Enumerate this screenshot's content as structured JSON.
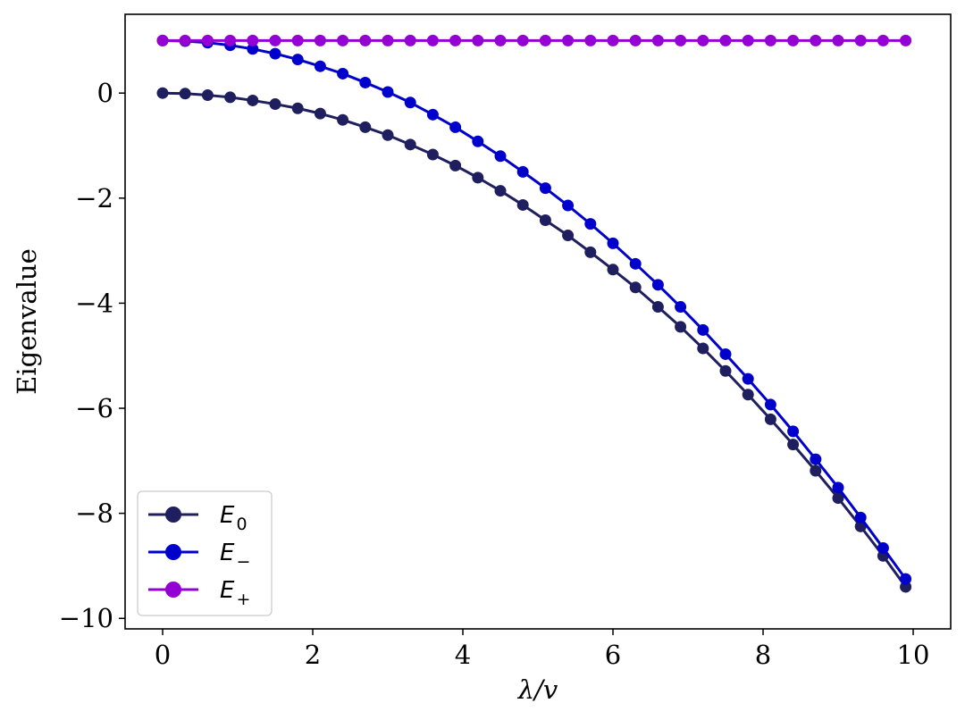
{
  "chart_data": {
    "type": "line",
    "xlabel": "λ/v",
    "ylabel": "Eigenvalue",
    "xlim": [
      -0.5,
      10.5
    ],
    "ylim": [
      -10.2,
      1.5
    ],
    "xticks": [
      0,
      2,
      4,
      6,
      8,
      10
    ],
    "yticks": [
      0,
      -2,
      -4,
      -6,
      -8,
      -10
    ],
    "xtick_labels": [
      "0",
      "2",
      "4",
      "6",
      "8",
      "10"
    ],
    "ytick_labels": [
      "0",
      "−2",
      "−4",
      "−6",
      "−8",
      "−10"
    ],
    "grid": false,
    "legend_position": "lower-left",
    "x": [
      0,
      0.3,
      0.6,
      0.9,
      1.2,
      1.5,
      1.8,
      2.1,
      2.4,
      2.7,
      3.0,
      3.3,
      3.6,
      3.9,
      4.2,
      4.5,
      4.8,
      5.1,
      5.4,
      5.7,
      6.0,
      6.3,
      6.6,
      6.9,
      7.2,
      7.5,
      7.8,
      8.1,
      8.4,
      8.7,
      9.0,
      9.3,
      9.6,
      9.9
    ],
    "series": [
      {
        "name": "E0",
        "label_main": "E",
        "label_sub": "0",
        "color": "#1f1f5f",
        "values": [
          0,
          -0.01,
          -0.04,
          -0.08,
          -0.14,
          -0.21,
          -0.29,
          -0.39,
          -0.51,
          -0.65,
          -0.8,
          -0.98,
          -1.17,
          -1.38,
          -1.61,
          -1.86,
          -2.13,
          -2.42,
          -2.71,
          -3.03,
          -3.36,
          -3.7,
          -4.07,
          -4.45,
          -4.86,
          -5.29,
          -5.74,
          -6.21,
          -6.69,
          -7.19,
          -7.71,
          -8.25,
          -8.81,
          -9.4
        ]
      },
      {
        "name": "E−",
        "label_main": "E",
        "label_sub": "−",
        "color": "#0000cc",
        "values": [
          1.0,
          0.99,
          0.96,
          0.91,
          0.84,
          0.75,
          0.64,
          0.51,
          0.37,
          0.2,
          0.02,
          -0.18,
          -0.41,
          -0.65,
          -0.92,
          -1.2,
          -1.5,
          -1.81,
          -2.14,
          -2.49,
          -2.86,
          -3.25,
          -3.65,
          -4.07,
          -4.51,
          -4.97,
          -5.44,
          -5.93,
          -6.44,
          -6.97,
          -7.51,
          -8.08,
          -8.66,
          -9.25
        ]
      },
      {
        "name": "E+",
        "label_main": "E",
        "label_sub": "+",
        "color": "#9400d3",
        "values": [
          1,
          1,
          1,
          1,
          1,
          1,
          1,
          1,
          1,
          1,
          1,
          1,
          1,
          1,
          1,
          1,
          1,
          1,
          1,
          1,
          1,
          1,
          1,
          1,
          1,
          1,
          1,
          1,
          1,
          1,
          1,
          1,
          1,
          1
        ]
      }
    ]
  }
}
